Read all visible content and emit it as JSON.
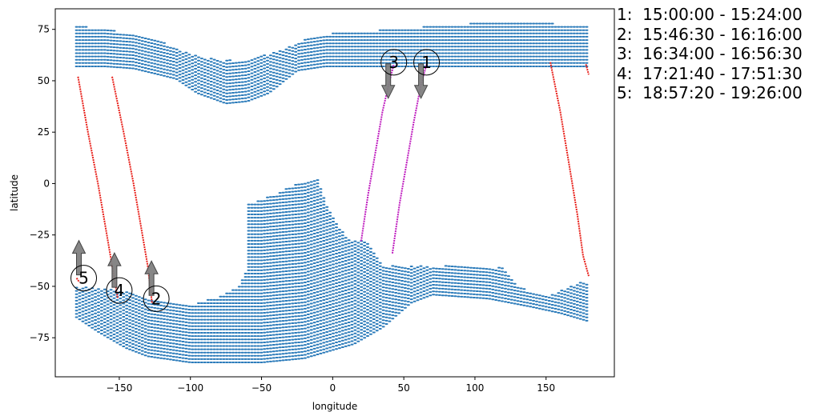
{
  "chart_data": {
    "type": "scatter",
    "title": "",
    "xlabel": "longitude",
    "ylabel": "latitude",
    "xlim": [
      -195,
      198
    ],
    "ylim": [
      -94,
      85
    ],
    "xticks": [
      -150,
      -100,
      -50,
      0,
      50,
      100,
      150
    ],
    "yticks": [
      -75,
      -50,
      -25,
      0,
      25,
      50,
      75
    ],
    "grid": false,
    "colors": {
      "coverage": "#2b7bba",
      "track_red": "#e8201a",
      "track_magenta": "#bf1ebf",
      "arrow": "#808080"
    },
    "coverage_regions": [
      {
        "name": "",
        "lat_step": 1.6,
        "lon_step": 2.2,
        "lat_top": [
          [
            -180,
            77
          ],
          [
            -160,
            75
          ],
          [
            -140,
            73
          ],
          [
            -120,
            69
          ],
          [
            -100,
            63
          ],
          [
            -80,
            60
          ],
          [
            -60,
            60
          ],
          [
            -40,
            64
          ],
          [
            -20,
            70
          ],
          [
            0,
            73
          ],
          [
            40,
            75
          ],
          [
            80,
            77
          ],
          [
            120,
            79
          ],
          [
            150,
            78
          ],
          [
            180,
            77
          ]
        ],
        "lat_bottom": [
          [
            -180,
            57
          ],
          [
            -160,
            57
          ],
          [
            -140,
            56
          ],
          [
            -110,
            51
          ],
          [
            -95,
            44
          ],
          [
            -75,
            39
          ],
          [
            -60,
            40
          ],
          [
            -45,
            44
          ],
          [
            -25,
            55
          ],
          [
            -5,
            57
          ],
          [
            40,
            57
          ],
          [
            100,
            57
          ],
          [
            150,
            57
          ],
          [
            180,
            57
          ]
        ]
      },
      {
        "name": "",
        "lat_step": 1.6,
        "lon_step": 2.2,
        "lat_top": [
          [
            -180,
            -50
          ],
          [
            -150,
            -52
          ],
          [
            -125,
            -56
          ],
          [
            -100,
            -59
          ],
          [
            -80,
            -55
          ],
          [
            -65,
            -50
          ],
          [
            -60,
            -40
          ],
          [
            -68,
            -30
          ],
          [
            -84,
            -13
          ],
          [
            -60,
            -10
          ],
          [
            -40,
            -5
          ],
          [
            -25,
            0
          ],
          [
            -10,
            3
          ],
          [
            -5,
            -10
          ],
          [
            10,
            -27
          ],
          [
            25,
            -28
          ],
          [
            35,
            -40
          ],
          [
            60,
            -40
          ],
          [
            90,
            -40
          ],
          [
            120,
            -41
          ],
          [
            130,
            -50
          ],
          [
            150,
            -55
          ],
          [
            175,
            -48
          ],
          [
            180,
            -48
          ]
        ],
        "lat_bottom": [
          [
            -180,
            -65
          ],
          [
            -165,
            -72
          ],
          [
            -145,
            -80
          ],
          [
            -130,
            -84
          ],
          [
            -100,
            -87
          ],
          [
            -50,
            -87
          ],
          [
            -20,
            -85
          ],
          [
            0,
            -81
          ],
          [
            15,
            -78
          ],
          [
            35,
            -70
          ],
          [
            55,
            -58
          ],
          [
            70,
            -54
          ],
          [
            110,
            -56
          ],
          [
            140,
            -60
          ],
          [
            160,
            -63
          ],
          [
            180,
            -67
          ]
        ]
      }
    ],
    "series": [
      {
        "name": "",
        "color": "#e8201a",
        "points": [
          [
            -179,
            52
          ],
          [
            -172,
            25
          ],
          [
            -165,
            0
          ],
          [
            -160,
            -20
          ],
          [
            -155,
            -40
          ],
          [
            -151,
            -56
          ]
        ]
      },
      {
        "name": "",
        "color": "#e8201a",
        "points": [
          [
            -155,
            52
          ],
          [
            -147,
            25
          ],
          [
            -140,
            0
          ],
          [
            -135,
            -20
          ],
          [
            -130,
            -40
          ],
          [
            -127,
            -58
          ]
        ]
      },
      {
        "name": "",
        "color": "#e8201a",
        "points": [
          [
            153,
            59
          ],
          [
            160,
            35
          ],
          [
            166,
            10
          ],
          [
            172,
            -15
          ],
          [
            176,
            -35
          ],
          [
            180,
            -45
          ]
        ]
      },
      {
        "name": "",
        "color": "#e8201a",
        "points": [
          [
            -180,
            -46
          ],
          [
            -178,
            -48
          ]
        ]
      },
      {
        "name": "",
        "color": "#e8201a",
        "points": [
          [
            178,
            58
          ],
          [
            180,
            53
          ]
        ]
      },
      {
        "name": "",
        "color": "#bf1ebf",
        "points": [
          [
            20,
            -28
          ],
          [
            25,
            -5
          ],
          [
            30,
            15
          ],
          [
            35,
            35
          ],
          [
            40,
            50
          ],
          [
            43,
            58
          ]
        ]
      },
      {
        "name": "",
        "color": "#bf1ebf",
        "points": [
          [
            42,
            -34
          ],
          [
            47,
            -10
          ],
          [
            52,
            10
          ],
          [
            57,
            30
          ],
          [
            62,
            48
          ],
          [
            66,
            58
          ]
        ]
      }
    ],
    "annotations": [
      {
        "label": "1",
        "lon": 66,
        "lat": 59,
        "arrow": "down"
      },
      {
        "label": "2",
        "lon": -124,
        "lat": -56,
        "arrow": "up"
      },
      {
        "label": "3",
        "lon": 43,
        "lat": 59,
        "arrow": "down"
      },
      {
        "label": "4",
        "lon": -150,
        "lat": -52,
        "arrow": "up"
      },
      {
        "label": "5",
        "lon": -175,
        "lat": -46,
        "arrow": "up"
      }
    ],
    "legend": {
      "placement": "outside-right",
      "entries": [
        "1:  15:00:00 - 15:24:00",
        "2:  15:46:30 - 16:16:00",
        "3:  16:34:00 - 16:56:30",
        "4:  17:21:40 - 17:51:30",
        "5:  18:57:20 - 19:26:00"
      ]
    }
  }
}
